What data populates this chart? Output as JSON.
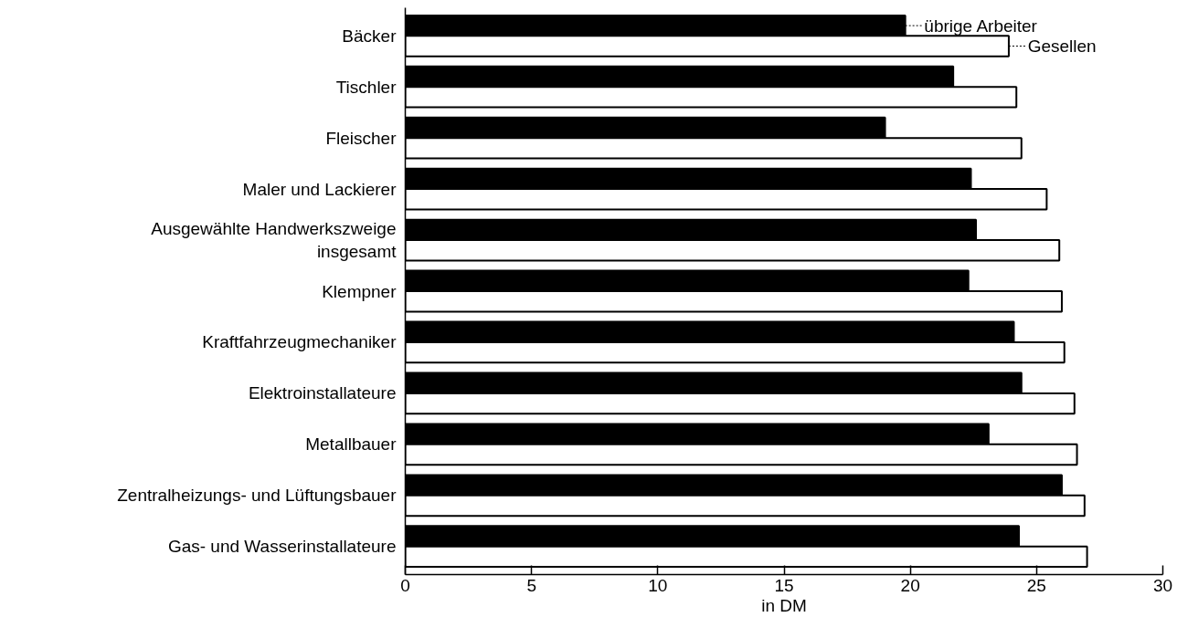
{
  "chart_data": {
    "type": "bar",
    "orientation": "horizontal",
    "xlabel": "in DM",
    "categories": [
      "Bäcker",
      "Tischler",
      "Fleischer",
      "Maler und Lackierer",
      "Ausgewählte Handwerkszweige\ninsgesamt",
      "Klempner",
      "Kraftfahrzeugmechaniker",
      "Elektroinstallateure",
      "Metallbauer",
      "Zentralheizungs- und Lüftungsbauer",
      "Gas- und Wasserinstallateure"
    ],
    "series": [
      {
        "name": "übrige Arbeiter",
        "color": "#000000",
        "values": [
          19.8,
          21.7,
          19.0,
          22.4,
          22.6,
          22.3,
          24.1,
          24.4,
          23.1,
          26.0,
          24.3
        ]
      },
      {
        "name": "Gesellen",
        "color": "#ffffff",
        "values": [
          23.9,
          24.2,
          24.4,
          25.4,
          25.9,
          26.0,
          26.1,
          26.5,
          26.6,
          26.9,
          27.0
        ]
      }
    ],
    "xlim": [
      0,
      30
    ],
    "xticks": [
      0,
      5,
      10,
      15,
      20,
      25,
      30
    ],
    "grid": false,
    "legend": "top right"
  }
}
